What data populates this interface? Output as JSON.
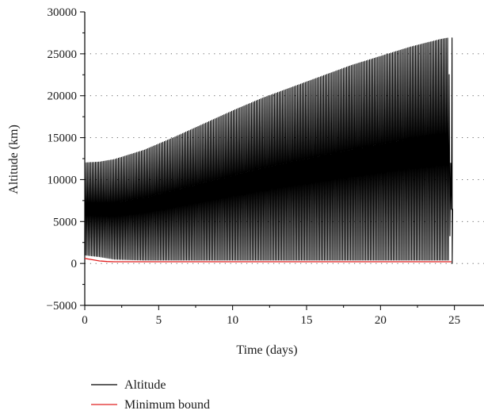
{
  "chart_data": {
    "type": "line",
    "xlabel": "Time (days)",
    "ylabel": "Altitude (km)",
    "xlim": [
      0,
      27
    ],
    "ylim": [
      -5000,
      30000
    ],
    "x_ticks": [
      0,
      5,
      10,
      15,
      20,
      25
    ],
    "y_ticks": [
      -5000,
      0,
      5000,
      10000,
      15000,
      20000,
      25000,
      30000
    ],
    "grid": "dotted horizontal",
    "legend_position": "bottom-left",
    "series": [
      {
        "name": "Altitude",
        "color": "#000000",
        "description_points": {
          "t": [
            0,
            1,
            2,
            4,
            6,
            8,
            10,
            12,
            14,
            16,
            18,
            20,
            22,
            24,
            24.6,
            24.8
          ],
          "apogee_km": [
            12000,
            12100,
            12400,
            13500,
            15000,
            16600,
            18200,
            19700,
            21000,
            22300,
            23600,
            24700,
            25800,
            26700,
            26900,
            6500
          ],
          "perigee_km": [
            1000,
            800,
            500,
            400,
            400,
            400,
            400,
            400,
            400,
            400,
            400,
            400,
            400,
            400,
            400,
            6500
          ]
        },
        "orbits": 240,
        "end_time": 24.85
      },
      {
        "name": "Minimum bound",
        "color": "#e02020",
        "x": [
          0,
          0.5,
          1.0,
          1.5,
          2.0,
          5,
          10,
          15,
          20,
          24.8
        ],
        "y": [
          600,
          450,
          300,
          230,
          200,
          200,
          200,
          200,
          200,
          200
        ]
      }
    ]
  }
}
